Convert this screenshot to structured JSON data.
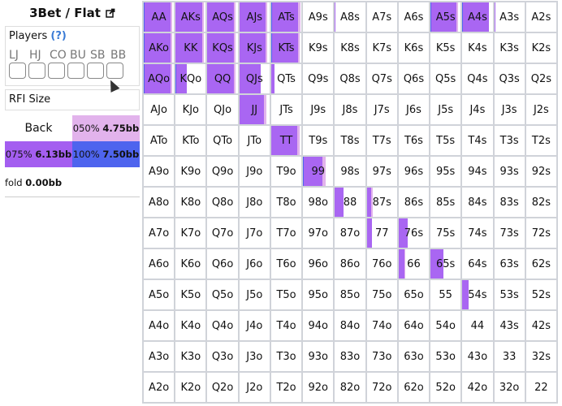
{
  "title": "3Bet / Flat",
  "players": {
    "label": "Players",
    "help": "(?)",
    "positions": [
      "LJ",
      "HJ",
      "CO",
      "BU",
      "SB",
      "BB"
    ]
  },
  "rfi_label": "RFI Size",
  "sizes": [
    {
      "label": "Back",
      "value": "",
      "color": "#ffffff"
    },
    {
      "label": "050%",
      "value": "4.75bb",
      "color": "#e2b3ec"
    },
    {
      "label": "075%",
      "value": "6.13bb",
      "color": "#a45ef0"
    },
    {
      "label": "100%",
      "value": "7.50bb",
      "color": "#4e64ee"
    }
  ],
  "fold": {
    "label": "fold",
    "value": "0.00bb"
  },
  "colors": {
    "blue": "#4e64ee",
    "purple": "#a966f2",
    "pink": "#e2b3ec"
  },
  "ranks": [
    "A",
    "K",
    "Q",
    "J",
    "T",
    "9",
    "8",
    "7",
    "6",
    "5",
    "4",
    "3",
    "2"
  ],
  "mix": {
    "AA": [
      0.02,
      0.86,
      0.05
    ],
    "AKs": [
      0,
      0.88,
      0.05
    ],
    "AQs": [
      0,
      0.88,
      0.05
    ],
    "AJs": [
      0.01,
      0.87,
      0.05
    ],
    "ATs": [
      0.02,
      0.86,
      0.08
    ],
    "A8s": [
      0,
      0.03,
      0
    ],
    "A5s": [
      0.02,
      0.83,
      0.07
    ],
    "A4s": [
      0.03,
      0.85,
      0
    ],
    "A3s": [
      0,
      0.03,
      0
    ],
    "AKo": [
      0.02,
      0.88,
      0.05
    ],
    "KK": [
      0,
      0.88,
      0.05
    ],
    "KQs": [
      0,
      0.88,
      0.05
    ],
    "KJs": [
      0.01,
      0.87,
      0.05
    ],
    "KTs": [
      0.02,
      0.86,
      0.05
    ],
    "AQo": [
      0.02,
      0.88,
      0.05
    ],
    "KQo": [
      0.01,
      0.37,
      0
    ],
    "QQ": [
      0,
      0.88,
      0.05
    ],
    "QJs": [
      0.01,
      0.69,
      0
    ],
    "QTs": [
      0,
      0.12,
      0
    ],
    "JJ": [
      0,
      0.82,
      0.08
    ],
    "TT": [
      0,
      0.85,
      0.08
    ],
    "99": [
      0.02,
      0.63,
      0.1
    ],
    "88": [
      0,
      0.28,
      0
    ],
    "87s": [
      0,
      0.15,
      0.05
    ],
    "77": [
      0,
      0.18,
      0
    ],
    "76s": [
      0,
      0.3,
      0
    ],
    "66": [
      0,
      0.18,
      0.03
    ],
    "65s": [
      0,
      0.42,
      0
    ],
    "54s": [
      0,
      0.22,
      0
    ]
  }
}
